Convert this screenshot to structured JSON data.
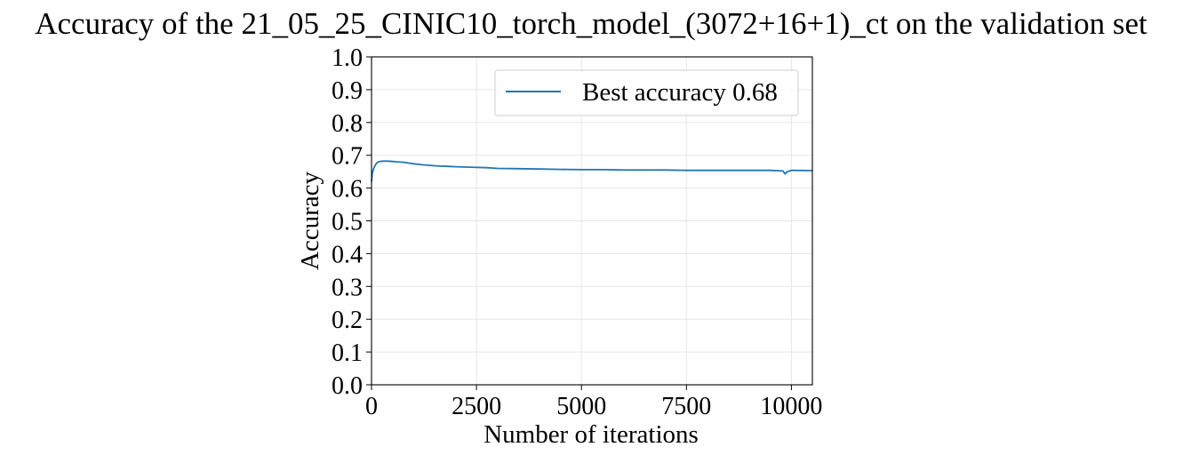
{
  "chart_data": {
    "type": "line",
    "title": "Accuracy of the 21_05_25_CINIC10_torch_model_(3072+16+1)_ct on the validation set",
    "xlabel": "Number of iterations",
    "ylabel": "Accuracy",
    "xlim": [
      0,
      10500
    ],
    "ylim": [
      0.0,
      1.0
    ],
    "xticks": [
      0,
      2500,
      5000,
      7500,
      10000
    ],
    "yticks": [
      0.0,
      0.1,
      0.2,
      0.3,
      0.4,
      0.5,
      0.6,
      0.7,
      0.8,
      0.9,
      1.0
    ],
    "ytick_labels": [
      "0.0",
      "0.1",
      "0.2",
      "0.3",
      "0.4",
      "0.5",
      "0.6",
      "0.7",
      "0.8",
      "0.9",
      "1.0"
    ],
    "grid": true,
    "legend_position": "top-right",
    "series": [
      {
        "name": "Best accuracy 0.68",
        "color": "#1f77b4",
        "x": [
          0,
          20,
          50,
          100,
          150,
          200,
          300,
          400,
          500,
          600,
          700,
          800,
          900,
          1000,
          1200,
          1400,
          1600,
          1800,
          2000,
          2250,
          2500,
          2750,
          3000,
          3500,
          4000,
          4500,
          5000,
          5500,
          6000,
          6500,
          7000,
          7500,
          8000,
          8500,
          9000,
          9500,
          9800,
          9850,
          9900,
          10000,
          10500
        ],
        "y": [
          0.62,
          0.645,
          0.66,
          0.672,
          0.679,
          0.681,
          0.682,
          0.682,
          0.681,
          0.68,
          0.679,
          0.678,
          0.676,
          0.674,
          0.671,
          0.669,
          0.667,
          0.666,
          0.665,
          0.664,
          0.663,
          0.662,
          0.66,
          0.659,
          0.658,
          0.657,
          0.656,
          0.656,
          0.655,
          0.655,
          0.655,
          0.654,
          0.654,
          0.654,
          0.654,
          0.654,
          0.652,
          0.643,
          0.65,
          0.654,
          0.653
        ]
      }
    ]
  }
}
